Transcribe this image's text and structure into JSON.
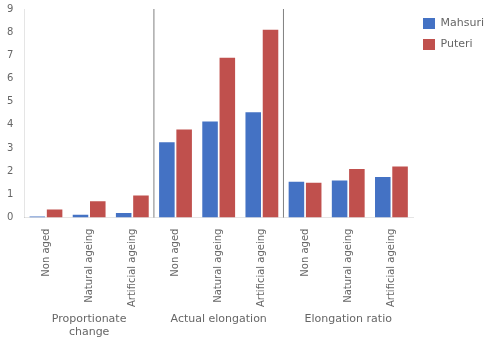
{
  "chart_data": {
    "type": "bar",
    "categories": [
      "Non aged",
      "Natural ageing",
      "Artificial ageing",
      "Non aged",
      "Natural ageing",
      "Artificial ageing",
      "Non aged",
      "Natural ageing",
      "Artificial ageing"
    ],
    "group_labels": [
      "Proportionate\nchange",
      "Actual elongation",
      "Elongation ratio"
    ],
    "series": [
      {
        "name": "Mahsuri",
        "color": "#4472C4",
        "values": [
          0.05,
          0.12,
          0.2,
          3.25,
          4.15,
          4.55,
          1.55,
          1.6,
          1.75
        ]
      },
      {
        "name": "Puteri",
        "color": "#C0504D",
        "values": [
          0.35,
          0.7,
          0.95,
          3.8,
          6.9,
          8.1,
          1.5,
          2.1,
          2.2
        ]
      }
    ],
    "ylim": [
      0,
      9
    ],
    "yticks": [
      0,
      1,
      2,
      3,
      4,
      5,
      6,
      7,
      8,
      9
    ],
    "grid": false,
    "legend": "right"
  }
}
